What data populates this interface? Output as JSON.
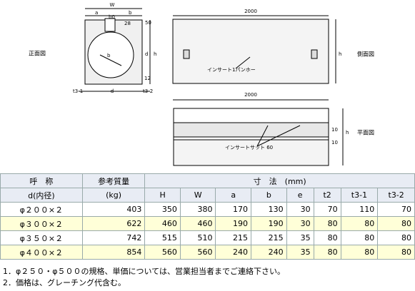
{
  "drawing": {
    "front_label": "正面図",
    "side_label": "側面図",
    "plan_label": "平面図",
    "length_top": "2000",
    "length_plan": "2000",
    "W": "W",
    "a": "a",
    "b": "b",
    "b0": "b0",
    "e": "28",
    "t2_top": "50",
    "h": "h",
    "d": "d",
    "b_diam": "b",
    "t2_bottom": "12",
    "t3_1": "t3-1",
    "d_bottom": "d",
    "t3_2": "t3-2",
    "side_h": "h",
    "callout_side": "インサート1パンホー",
    "callout_plan": "インサートサット 60",
    "plan_dim1": "10",
    "plan_dim2": "10",
    "plan_h": "h"
  },
  "table": {
    "header": {
      "name": "呼　称",
      "name_sub": "d(内径)",
      "mass": "参考質量",
      "mass_unit": "(kg)",
      "dims": "寸　法　(mm)",
      "cols": [
        "H",
        "W",
        "a",
        "b",
        "e",
        "t2",
        "t3-1",
        "t3-2"
      ]
    },
    "rows": [
      [
        "φ２００×２",
        "403",
        "350",
        "380",
        "170",
        "130",
        "30",
        "70",
        "110",
        "70"
      ],
      [
        "φ３００×２",
        "622",
        "460",
        "460",
        "190",
        "190",
        "30",
        "80",
        "80",
        "80"
      ],
      [
        "φ３５０×２",
        "742",
        "515",
        "510",
        "215",
        "215",
        "35",
        "80",
        "80",
        "80"
      ],
      [
        "φ４００×２",
        "854",
        "560",
        "560",
        "240",
        "240",
        "35",
        "80",
        "80",
        "80"
      ]
    ]
  },
  "notes": [
    "1．φ２５０・φ５００の規格、単価については、営業担当者までご連絡下さい。",
    "2．価格は、グレーチング代含む。"
  ]
}
